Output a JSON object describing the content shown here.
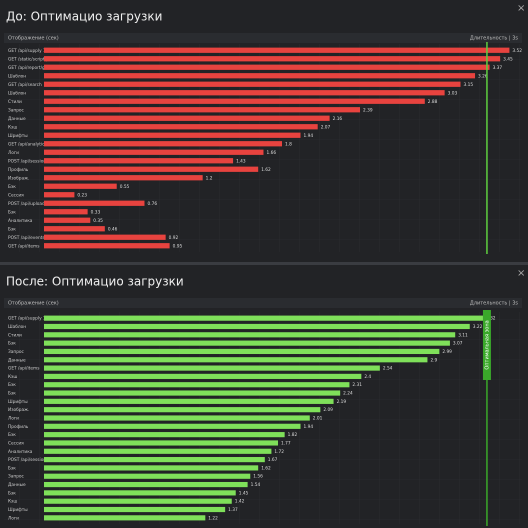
{
  "chart_data": [
    {
      "type": "bar",
      "orientation": "horizontal",
      "title": "До: Оптимацио загрузки",
      "subtitle": "Отображение (сек)",
      "subtitle_right": "Длительность | 3s",
      "close": "×",
      "categories": [
        "GET /api/supply 1",
        "GET /static/script.js",
        "GET /api/report/get",
        "Шаблон",
        "GET /api/search",
        "Шаблон",
        "Стили",
        "Запрос",
        "Данные",
        "Кэш",
        "Шрифты",
        "GET /api/analytics",
        "Логи",
        "POST /api/session",
        "Профиль",
        "Изображ.",
        "Бэк",
        "Сессия",
        "POST /api/upload",
        "Бэк",
        "Аналитика",
        "Бэк",
        "POST /api/events",
        "GET /api/items"
      ],
      "values": [
        3.52,
        3.45,
        3.37,
        3.26,
        3.15,
        3.03,
        2.88,
        2.39,
        2.16,
        2.07,
        1.94,
        1.8,
        1.66,
        1.43,
        1.62,
        1.2,
        0.55,
        0.23,
        0.76,
        0.33,
        0.35,
        0.46,
        0.92,
        0.95
      ],
      "color": "#e8433f",
      "xlim": [
        0,
        3.6
      ],
      "threshold": 3.35,
      "threshold_color": "#5ecf3f",
      "grid": true
    },
    {
      "type": "bar",
      "orientation": "horizontal",
      "title": "После: Оптимацио загрузки",
      "subtitle": "Отображение (сек)",
      "subtitle_right": "Длительность | 3s",
      "close": "×",
      "threshold_label": "Оптимальная зона",
      "categories": [
        "GET /api/supply 1",
        "Шаблон",
        "Стили",
        "Бэк",
        "Запрос",
        "Данные",
        "GET /api/items",
        "Кэш",
        "Бэк",
        "Бэк",
        "Шрифты",
        "Изображ.",
        "Логи",
        "Профиль",
        "Бэк",
        "Сессия",
        "Аналитика",
        "POST /api/session",
        "Бэк",
        "Запрос",
        "Данные",
        "Бэк",
        "Кэш",
        "Шрифты",
        "Логи"
      ],
      "values": [
        3.32,
        3.22,
        3.11,
        3.07,
        2.99,
        2.9,
        2.54,
        2.4,
        2.31,
        2.24,
        2.19,
        2.09,
        2.01,
        1.94,
        1.82,
        1.77,
        1.72,
        1.67,
        1.62,
        1.56,
        1.54,
        1.45,
        1.42,
        1.37,
        1.22
      ],
      "color": "#7fe05a",
      "xlim": [
        0,
        3.6
      ],
      "threshold": 3.35,
      "threshold_color": "#3aa82a",
      "grid": true
    }
  ]
}
